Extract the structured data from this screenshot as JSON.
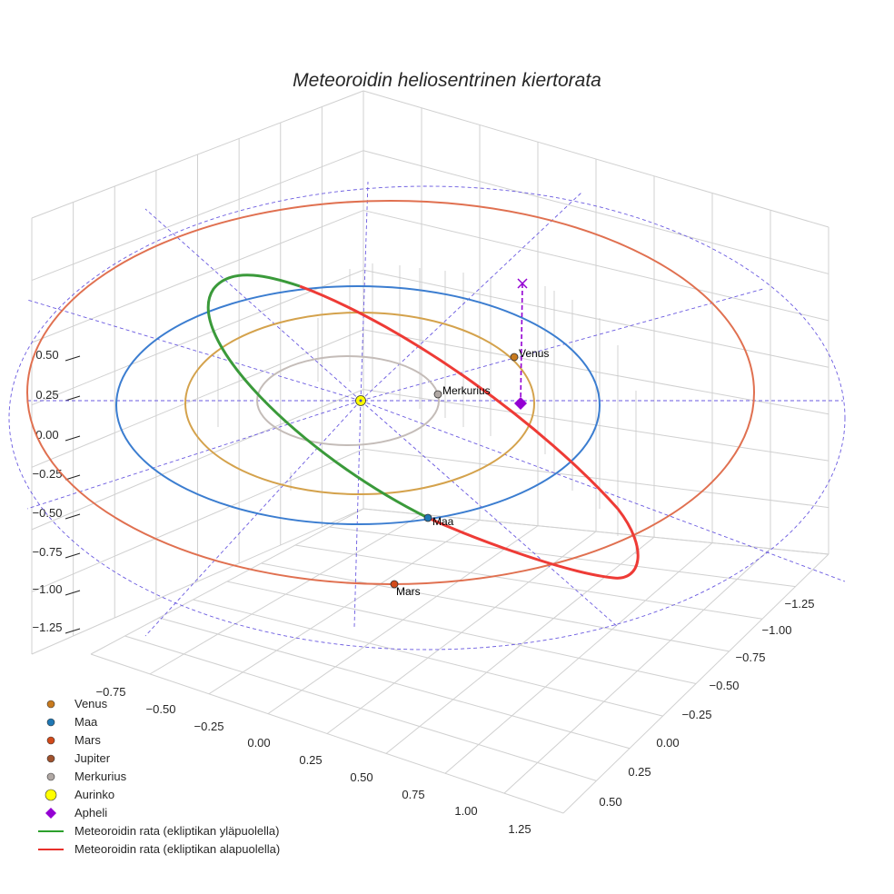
{
  "chart_data": {
    "type": "line",
    "title": "Meteoroidin heliosentrinen kiertorata",
    "projection": "3d",
    "x_ticks": [
      "−0.75",
      "−0.50",
      "−0.25",
      "0.00",
      "0.25",
      "0.50",
      "0.75",
      "1.00",
      "1.25"
    ],
    "y_ticks": [
      "−1.25",
      "−1.00",
      "−0.75",
      "−0.50",
      "−0.25",
      "0.00",
      "0.25",
      "0.50"
    ],
    "z_ticks": [
      "0.50",
      "0.25",
      "0.00",
      "−0.25",
      "−0.50",
      "−0.75",
      "−1.00",
      "−1.25"
    ],
    "planets": [
      {
        "name": "Venus",
        "label": "Venus",
        "color": "#c87a1e",
        "orbit_color": "#d4a24c",
        "orbit_radius_au": 0.72
      },
      {
        "name": "Maa",
        "label": "Maa",
        "color": "#1f77b4",
        "orbit_color": "#3b7dd0",
        "orbit_radius_au": 1.0
      },
      {
        "name": "Mars",
        "label": "Mars",
        "color": "#d24a1a",
        "orbit_color": "#e07050",
        "orbit_radius_au": 1.52
      },
      {
        "name": "Jupiter",
        "color": "#a0522d"
      },
      {
        "name": "Merkurius",
        "label": "Merkurius",
        "color": "#b0a8a4",
        "orbit_color": "#c4bcb8",
        "orbit_radius_au": 0.39
      }
    ],
    "legend": [
      {
        "label": "Venus",
        "marker": "circle",
        "color": "#c87a1e"
      },
      {
        "label": "Maa",
        "marker": "circle",
        "color": "#1f77b4"
      },
      {
        "label": "Mars",
        "marker": "circle",
        "color": "#d24a1a"
      },
      {
        "label": "Jupiter",
        "marker": "circle",
        "color": "#a0522d"
      },
      {
        "label": "Merkurius",
        "marker": "circle",
        "color": "#b0a8a4"
      },
      {
        "label": "Aurinko",
        "marker": "circle-large",
        "color": "#ffff00"
      },
      {
        "label": "Apheli",
        "marker": "diamond",
        "color": "#9400d3"
      },
      {
        "label": "Meteoroidin rata (ekliptikan yläpuolella)",
        "marker": "line",
        "color": "#2ca02c"
      },
      {
        "label": "Meteoroidin rata (ekliptikan alapuolella)",
        "marker": "line",
        "color": "#e8302a"
      }
    ],
    "legend_position": "bottom-left",
    "series": [
      {
        "name": "Meteoroidin rata (ekliptikan yläpuolella)",
        "color": "#3a9a3a"
      },
      {
        "name": "Meteoroidin rata (ekliptikan alapuolella)",
        "color": "#ee3b36"
      }
    ],
    "grid": true
  }
}
